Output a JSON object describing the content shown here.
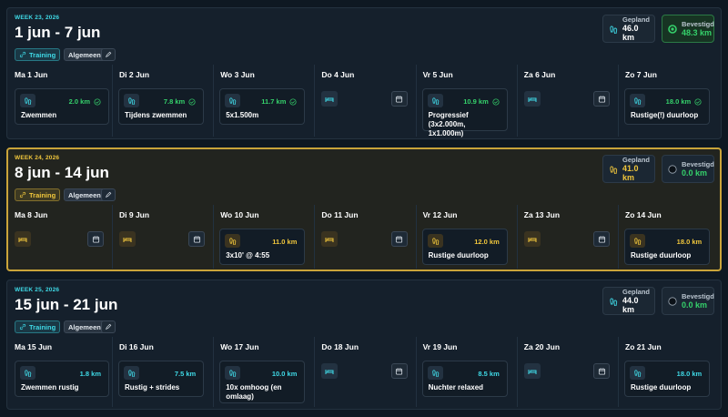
{
  "weeks": [
    {
      "label": "WEEK 23, 2026",
      "range": "1 jun - 7 jun",
      "tag": "Training",
      "category": "Algemeen",
      "planned_label": "Gepland",
      "planned": "46.0 km",
      "confirmed_label": "Bevestigd",
      "confirmed": "48.3 km",
      "accent": "#3fd9e6",
      "completed": true,
      "days": [
        {
          "day": "Ma 1 Jun",
          "distance": "2.0 km",
          "title": "Zwemmen"
        },
        {
          "day": "Di 2 Jun",
          "distance": "7.8 km",
          "title": "Tijdens zwemmen"
        },
        {
          "day": "Wo 3 Jun",
          "distance": "11.7 km",
          "title": "5x1.500m"
        },
        {
          "day": "Do 4 Jun"
        },
        {
          "day": "Vr 5 Jun",
          "distance": "10.9 km",
          "title": "Progressief (3x2.000m, 1x1.000m)"
        },
        {
          "day": "Za 6 Jun"
        },
        {
          "day": "Zo 7 Jun",
          "distance": "18.0 km",
          "title": "Rustige(!) duurloop"
        }
      ]
    },
    {
      "label": "WEEK 24, 2026",
      "range": "8 jun - 14 jun",
      "tag": "Training",
      "category": "Algemeen",
      "planned_label": "Gepland",
      "planned": "41.0 km",
      "confirmed_label": "Bevestigd",
      "confirmed": "0.0 km",
      "accent": "#f0c63c",
      "completed": false,
      "days": [
        {
          "day": "Ma 8 Jun"
        },
        {
          "day": "Di 9 Jun"
        },
        {
          "day": "Wo 10 Jun",
          "distance": "11.0 km",
          "title": "3x10' @ 4:55"
        },
        {
          "day": "Do 11 Jun"
        },
        {
          "day": "Vr 12 Jun",
          "distance": "12.0 km",
          "title": "Rustige duurloop"
        },
        {
          "day": "Za 13 Jun"
        },
        {
          "day": "Zo 14 Jun",
          "distance": "18.0 km",
          "title": "Rustige duurloop"
        }
      ]
    },
    {
      "label": "WEEK 25, 2026",
      "range": "15 jun - 21 jun",
      "tag": "Training",
      "category": "Algemeen",
      "planned_label": "Gepland",
      "planned": "44.0 km",
      "confirmed_label": "Bevestigd",
      "confirmed": "0.0 km",
      "accent": "#3fd9e6",
      "completed": false,
      "days": [
        {
          "day": "Ma 15 Jun",
          "distance": "1.8 km",
          "title": "Zwemmen rustig"
        },
        {
          "day": "Di 16 Jun",
          "distance": "7.5 km",
          "title": "Rustig + strides"
        },
        {
          "day": "Wo 17 Jun",
          "distance": "10.0 km",
          "title": "10x omhoog (en omlaag)"
        },
        {
          "day": "Do 18 Jun"
        },
        {
          "day": "Vr 19 Jun",
          "distance": "8.5 km",
          "title": "Nuchter relaxed"
        },
        {
          "day": "Za 20 Jun"
        },
        {
          "day": "Zo 21 Jun",
          "distance": "18.0 km",
          "title": "Rustige duurloop"
        }
      ]
    }
  ]
}
